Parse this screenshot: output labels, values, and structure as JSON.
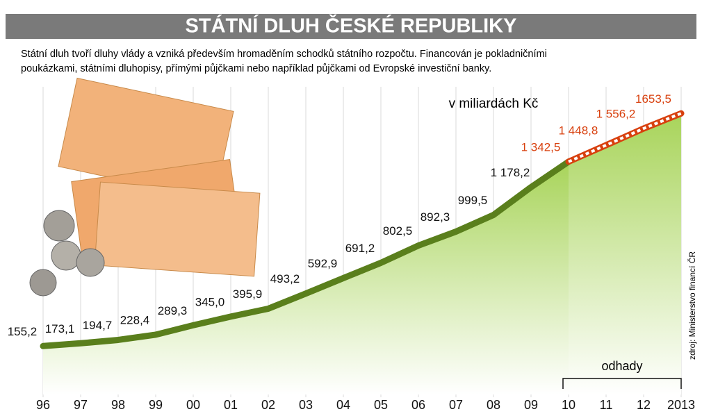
{
  "chart_data": {
    "type": "line",
    "title": "STÁTNÍ DLUH ČESKÉ REPUBLIKY",
    "subtitle": [
      "Státní dluh tvoří dluhy vlády a vzniká především hromaděním schodků státního rozpočtu. Financován je pokladničními",
      "poukázkami, státními dluhopisy, přímými půjčkami nebo například půjčkami od Evropské investiční banky."
    ],
    "unit_note": "v miliardách Kč",
    "source": "zdroj: Ministerstvo financí ČR",
    "annotation": "odhady",
    "categories": [
      "96",
      "97",
      "98",
      "99",
      "00",
      "01",
      "02",
      "03",
      "04",
      "05",
      "06",
      "07",
      "08",
      "09",
      "10",
      "11",
      "12",
      "2013"
    ],
    "series": [
      {
        "color": "#5a7f1c",
        "values": [
          155.2,
          173.1,
          194.7,
          228.4,
          289.3,
          345.0,
          395.9,
          493.2,
          592.9,
          691.2,
          802.5,
          892.3,
          999.5,
          1178.2,
          1342.5,
          null,
          null,
          null
        ],
        "value_labels": [
          "155,2",
          "173,1",
          "194,7",
          "228,4",
          "289,3",
          "345,0",
          "395,9",
          "493,2",
          "592,9",
          "691,2",
          "802,5",
          "892,3",
          "999,5",
          "1 178,2",
          null,
          null,
          null,
          null
        ]
      },
      {
        "color": "#d8400e",
        "values": [
          null,
          null,
          null,
          null,
          null,
          null,
          null,
          null,
          null,
          null,
          null,
          null,
          null,
          null,
          1342.5,
          1448.8,
          1556.2,
          1653.5
        ],
        "value_labels": [
          null,
          null,
          null,
          null,
          null,
          null,
          null,
          null,
          null,
          null,
          null,
          null,
          null,
          null,
          "1 342,5",
          "1 448,8",
          "1 556,2",
          "1653,5"
        ]
      }
    ],
    "grid": true
  }
}
